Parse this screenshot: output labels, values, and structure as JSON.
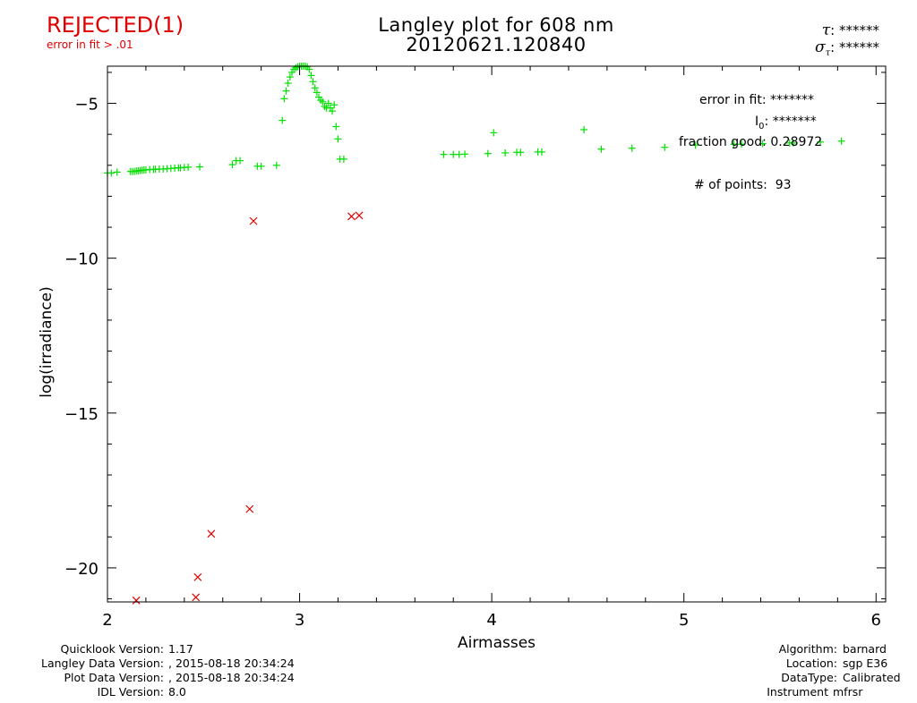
{
  "status": {
    "label": "REJECTED(1)",
    "reason": "error in fit > .01"
  },
  "header": {
    "title": "Langley plot for 608 nm",
    "subtitle": "20120621.120840"
  },
  "tau": {
    "symbol": "τ",
    "value": "******"
  },
  "sigma_tau": {
    "symbol": "σ",
    "subscript": "τ",
    "value": "******"
  },
  "fit_info": {
    "error_in_fit_label": "error in fit:",
    "error_in_fit_value": "*******",
    "i0_label": "I",
    "i0_subscript": "0",
    "i0_value": "*******",
    "fraction_good_label": "fraction good:",
    "fraction_good_value": "0.28972",
    "points_label": "# of points:",
    "points_value": "93"
  },
  "footer_left": [
    {
      "label": "Quicklook Version:",
      "value": "1.17"
    },
    {
      "label": "Langley Data Version:",
      "value": ", 2015-08-18 20:34:24"
    },
    {
      "label": "Plot Data Version:",
      "value": ", 2015-08-18 20:34:24"
    },
    {
      "label": "IDL Version:",
      "value": "8.0"
    }
  ],
  "footer_right": [
    {
      "label": "Algorithm:",
      "value": "barnard"
    },
    {
      "label": "Location:",
      "value": "sgp E36"
    },
    {
      "label": "DataType:",
      "value": "Calibrated"
    },
    {
      "label": "Instrument",
      "value": "mfrsr"
    }
  ],
  "colors": {
    "good": "#00e000",
    "rejected": "#e00000",
    "axis": "#000000"
  },
  "chart_data": {
    "type": "scatter",
    "xlabel": "Airmasses",
    "ylabel": "log(irradiance)",
    "xlim": [
      2,
      6.05
    ],
    "ylim": [
      -21.1,
      -3.8
    ],
    "xticks": [
      2,
      3,
      4,
      5,
      6
    ],
    "yticks": [
      -5,
      -10,
      -15,
      -20
    ],
    "series": [
      {
        "marker": "plus",
        "points": [
          [
            2.0,
            -7.25
          ],
          [
            2.02,
            -7.25
          ],
          [
            2.05,
            -7.22
          ],
          [
            2.12,
            -7.2
          ],
          [
            2.13,
            -7.2
          ],
          [
            2.14,
            -7.2
          ],
          [
            2.15,
            -7.18
          ],
          [
            2.16,
            -7.18
          ],
          [
            2.17,
            -7.17
          ],
          [
            2.18,
            -7.16
          ],
          [
            2.19,
            -7.15
          ],
          [
            2.2,
            -7.15
          ],
          [
            2.22,
            -7.14
          ],
          [
            2.24,
            -7.13
          ],
          [
            2.25,
            -7.13
          ],
          [
            2.27,
            -7.12
          ],
          [
            2.29,
            -7.12
          ],
          [
            2.31,
            -7.11
          ],
          [
            2.33,
            -7.1
          ],
          [
            2.35,
            -7.09
          ],
          [
            2.37,
            -7.08
          ],
          [
            2.38,
            -7.08
          ],
          [
            2.4,
            -7.07
          ],
          [
            2.42,
            -7.06
          ],
          [
            2.48,
            -7.05
          ],
          [
            2.65,
            -6.98
          ],
          [
            2.67,
            -6.85
          ],
          [
            2.69,
            -6.85
          ],
          [
            2.78,
            -7.03
          ],
          [
            2.8,
            -7.03
          ],
          [
            2.88,
            -7.0
          ],
          [
            2.91,
            -5.55
          ],
          [
            2.92,
            -4.85
          ],
          [
            2.93,
            -4.6
          ],
          [
            2.94,
            -4.35
          ],
          [
            2.95,
            -4.15
          ],
          [
            2.96,
            -4.0
          ],
          [
            2.97,
            -3.9
          ],
          [
            2.98,
            -3.85
          ],
          [
            2.99,
            -3.82
          ],
          [
            3.0,
            -3.8
          ],
          [
            3.01,
            -3.8
          ],
          [
            3.02,
            -3.8
          ],
          [
            3.03,
            -3.8
          ],
          [
            3.04,
            -3.82
          ],
          [
            3.05,
            -3.9
          ],
          [
            3.06,
            -4.1
          ],
          [
            3.07,
            -4.3
          ],
          [
            3.08,
            -4.5
          ],
          [
            3.09,
            -4.65
          ],
          [
            3.1,
            -4.8
          ],
          [
            3.11,
            -4.9
          ],
          [
            3.12,
            -4.95
          ],
          [
            3.13,
            -5.1
          ],
          [
            3.14,
            -5.15
          ],
          [
            3.15,
            -5.0
          ],
          [
            3.16,
            -5.15
          ],
          [
            3.17,
            -5.25
          ],
          [
            3.18,
            -5.05
          ],
          [
            3.19,
            -5.75
          ],
          [
            3.2,
            -6.15
          ],
          [
            3.21,
            -6.8
          ],
          [
            3.23,
            -6.8
          ],
          [
            3.75,
            -6.65
          ],
          [
            3.8,
            -6.65
          ],
          [
            3.83,
            -6.65
          ],
          [
            3.86,
            -6.64
          ],
          [
            3.98,
            -6.62
          ],
          [
            4.01,
            -5.95
          ],
          [
            4.07,
            -6.6
          ],
          [
            4.13,
            -6.58
          ],
          [
            4.15,
            -6.58
          ],
          [
            4.24,
            -6.57
          ],
          [
            4.26,
            -6.57
          ],
          [
            4.48,
            -5.85
          ],
          [
            4.57,
            -6.48
          ],
          [
            4.73,
            -6.45
          ],
          [
            4.9,
            -6.42
          ],
          [
            5.06,
            -6.35
          ],
          [
            5.26,
            -6.32
          ],
          [
            5.3,
            -6.32
          ],
          [
            5.41,
            -6.3
          ],
          [
            5.55,
            -6.28
          ],
          [
            5.57,
            -6.28
          ],
          [
            5.71,
            -6.25
          ],
          [
            5.82,
            -6.22
          ]
        ]
      },
      {
        "marker": "cross",
        "points": [
          [
            2.15,
            -21.05
          ],
          [
            2.46,
            -20.95
          ],
          [
            2.47,
            -20.3
          ],
          [
            2.54,
            -18.9
          ],
          [
            2.74,
            -18.1
          ],
          [
            2.76,
            -8.8
          ],
          [
            3.27,
            -8.65
          ],
          [
            3.31,
            -8.62
          ]
        ]
      }
    ]
  }
}
